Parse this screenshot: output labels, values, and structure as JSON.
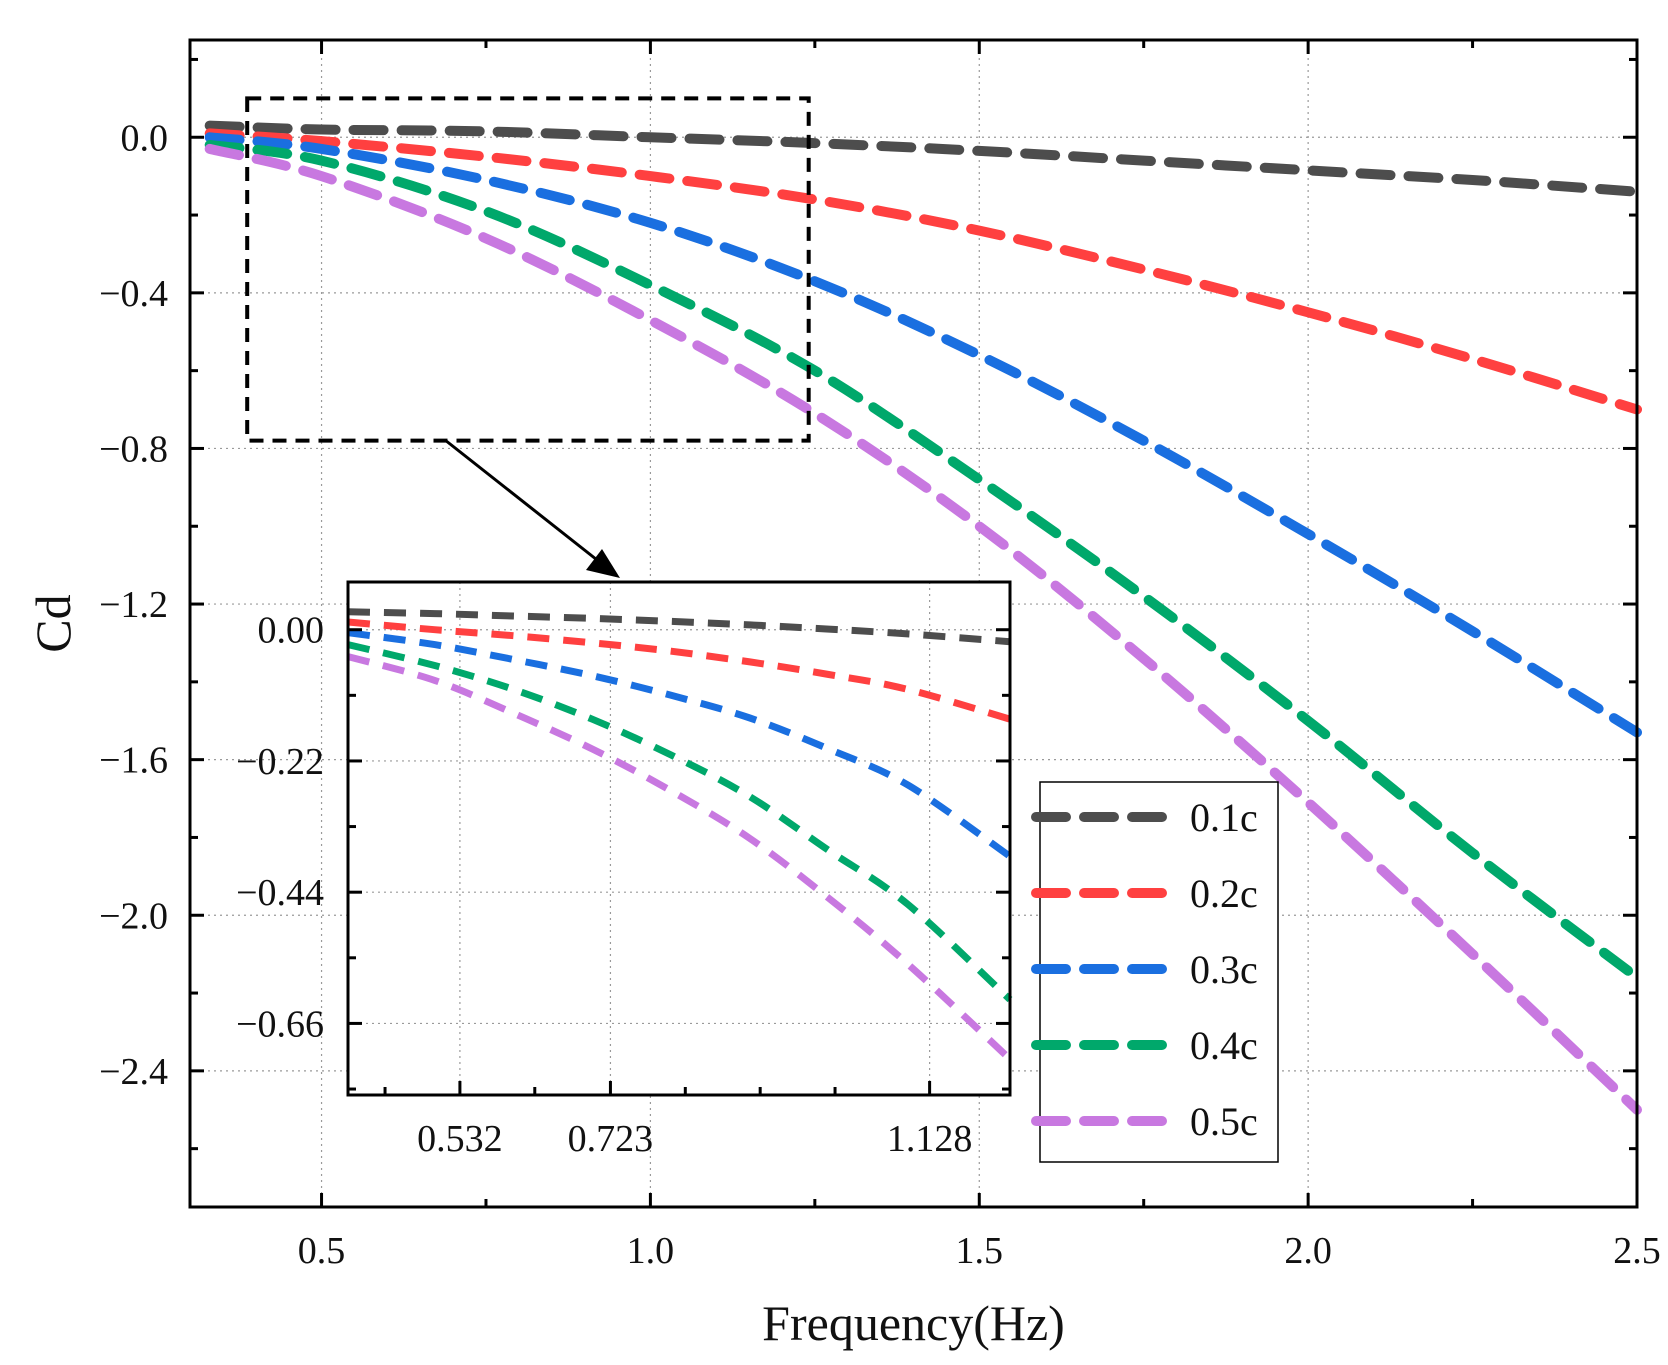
{
  "chart_data": {
    "type": "line",
    "title": "",
    "xlabel": "Frequency(Hz)",
    "ylabel": "Cd",
    "xlim": [
      0.3,
      2.5
    ],
    "ylim": [
      -2.75,
      0.25
    ],
    "xticks": [
      0.5,
      1.0,
      1.5,
      2.0,
      2.5
    ],
    "xtick_labels": [
      "0.5",
      "1.0",
      "1.5",
      "2.0",
      "2.5"
    ],
    "yticks": [
      0.0,
      -0.4,
      -0.8,
      -1.2,
      -1.6,
      -2.0,
      -2.4
    ],
    "ytick_labels": [
      "0.0",
      "−0.4",
      "−0.8",
      "−1.2",
      "−1.6",
      "−2.0",
      "−2.4"
    ],
    "grid": true,
    "legend_position": "bottom-right",
    "x": [
      0.33,
      0.5,
      0.75,
      1.0,
      1.25,
      1.5,
      1.75,
      2.0,
      2.25,
      2.5
    ],
    "series": [
      {
        "name": "0.1c",
        "color": "#4d4d4d",
        "values": [
          0.03,
          0.02,
          0.015,
          0.0,
          -0.015,
          -0.035,
          -0.06,
          -0.085,
          -0.11,
          -0.14
        ]
      },
      {
        "name": "0.2c",
        "color": "#ff4040",
        "values": [
          0.01,
          -0.01,
          -0.05,
          -0.1,
          -0.16,
          -0.24,
          -0.34,
          -0.45,
          -0.57,
          -0.7
        ]
      },
      {
        "name": "0.3c",
        "color": "#1a6fe0",
        "values": [
          0.0,
          -0.03,
          -0.11,
          -0.22,
          -0.37,
          -0.56,
          -0.78,
          -1.02,
          -1.27,
          -1.53
        ]
      },
      {
        "name": "0.4c",
        "color": "#00a86b",
        "values": [
          -0.02,
          -0.06,
          -0.19,
          -0.38,
          -0.6,
          -0.88,
          -1.18,
          -1.5,
          -1.84,
          -2.16
        ]
      },
      {
        "name": "0.5c",
        "color": "#c878e0",
        "values": [
          -0.03,
          -0.1,
          -0.26,
          -0.47,
          -0.71,
          -1.0,
          -1.34,
          -1.71,
          -2.1,
          -2.5
        ]
      }
    ],
    "inset": {
      "xlim": [
        0.39,
        1.23
      ],
      "ylim": [
        -0.78,
        0.08
      ],
      "xticks": [
        0.532,
        0.723,
        1.128
      ],
      "xtick_labels": [
        "0.532",
        "0.723",
        "1.128"
      ],
      "yticks": [
        0.0,
        -0.22,
        -0.44,
        -0.66
      ],
      "ytick_labels": [
        "0.00",
        "−0.22",
        "−0.44",
        "−0.66"
      ],
      "x": [
        0.39,
        0.5,
        0.6,
        0.7,
        0.8,
        0.9,
        1.0,
        1.1,
        1.23
      ],
      "series": [
        {
          "name": "0.1c",
          "values": [
            0.03,
            0.027,
            0.023,
            0.019,
            0.014,
            0.008,
            0.001,
            -0.007,
            -0.02
          ]
        },
        {
          "name": "0.2c",
          "values": [
            0.013,
            0.0,
            -0.01,
            -0.022,
            -0.036,
            -0.054,
            -0.075,
            -0.1,
            -0.15
          ]
        },
        {
          "name": "0.3c",
          "values": [
            -0.005,
            -0.025,
            -0.05,
            -0.077,
            -0.11,
            -0.148,
            -0.2,
            -0.26,
            -0.38
          ]
        },
        {
          "name": "0.4c",
          "values": [
            -0.025,
            -0.06,
            -0.1,
            -0.15,
            -0.21,
            -0.28,
            -0.37,
            -0.46,
            -0.62
          ]
        },
        {
          "name": "0.5c",
          "values": [
            -0.045,
            -0.085,
            -0.14,
            -0.2,
            -0.27,
            -0.35,
            -0.45,
            -0.56,
            -0.72
          ]
        }
      ]
    }
  }
}
